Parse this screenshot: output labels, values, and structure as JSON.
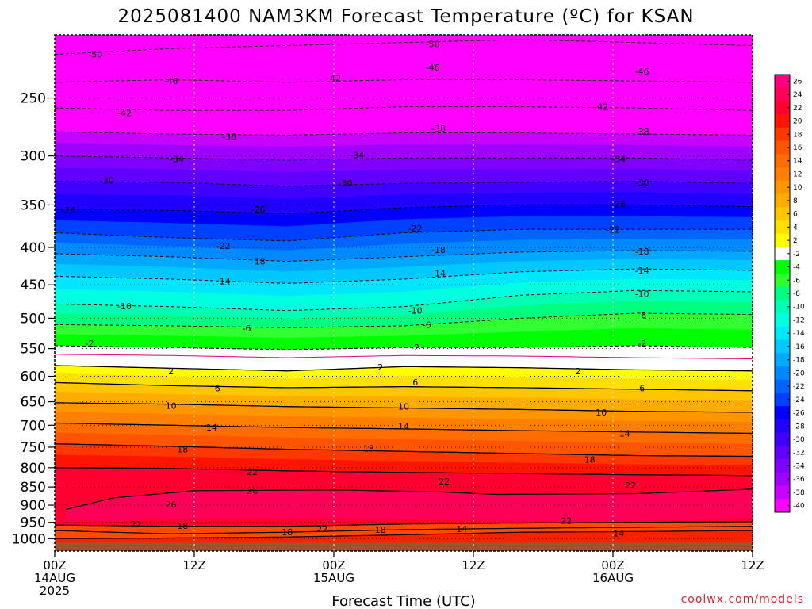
{
  "chart_data": {
    "type": "heatmap",
    "title": "2025081400 NAM3KM Forecast Temperature (ºC) for KSAN",
    "xlabel": "Forecast Time (UTC)",
    "ylabel": "",
    "y_scale": "log-pressure",
    "ylim": [
      1040,
      205
    ],
    "xlim_hours": [
      0,
      60
    ],
    "grid": true,
    "x_ticks": [
      {
        "hour": 0,
        "lines": [
          "00Z",
          "14AUG",
          "2025"
        ]
      },
      {
        "hour": 12,
        "lines": [
          "12Z"
        ]
      },
      {
        "hour": 24,
        "lines": [
          "00Z",
          "15AUG"
        ]
      },
      {
        "hour": 36,
        "lines": [
          "12Z"
        ]
      },
      {
        "hour": 48,
        "lines": [
          "00Z",
          "16AUG"
        ]
      },
      {
        "hour": 60,
        "lines": [
          "12Z"
        ]
      }
    ],
    "y_ticks": [
      250,
      300,
      350,
      400,
      450,
      500,
      550,
      600,
      650,
      700,
      750,
      800,
      850,
      900,
      950,
      1000
    ],
    "colorbar": {
      "placement": "right",
      "ticks": [
        26,
        24,
        22,
        20,
        18,
        16,
        14,
        12,
        10,
        8,
        6,
        4,
        2,
        -2,
        -4,
        -6,
        -8,
        -10,
        -12,
        -14,
        -16,
        -18,
        -20,
        -22,
        -24,
        -26,
        -28,
        -30,
        -32,
        -34,
        -36,
        -38,
        -40
      ],
      "colors": [
        "#ff0080",
        "#ff0058",
        "#ff0030",
        "#ff1400",
        "#ff3800",
        "#ff5400",
        "#ff6c00",
        "#ff8000",
        "#ff9600",
        "#ffac00",
        "#ffc600",
        "#ffe000",
        "#ffff00",
        "#ffffff",
        "#00ff00",
        "#30ff30",
        "#00ff80",
        "#00ffb4",
        "#00ffe0",
        "#00e6ff",
        "#00c8ff",
        "#00a8ff",
        "#0088ff",
        "#0064ff",
        "#0040ff",
        "#0000ff",
        "#2000ff",
        "#4000ff",
        "#6000ff",
        "#8000ff",
        "#a000ff",
        "#c800ff",
        "#ff00ff"
      ]
    },
    "series": [
      {
        "temp": 26,
        "x": [
          1,
          5,
          12,
          24,
          33,
          38,
          50,
          55,
          60
        ],
        "y": [
          912,
          880,
          860,
          858,
          863,
          870,
          868,
          862,
          856
        ]
      },
      {
        "temp": 22,
        "x": [
          0,
          10,
          20,
          30,
          40,
          50,
          60
        ],
        "y": [
          800,
          802,
          808,
          812,
          815,
          818,
          820
        ]
      },
      {
        "temp": 18,
        "x": [
          0,
          10,
          20,
          30,
          40,
          50,
          60
        ],
        "y": [
          742,
          748,
          755,
          760,
          765,
          770,
          772
        ]
      },
      {
        "temp": 14,
        "x": [
          0,
          10,
          20,
          30,
          40,
          50,
          60
        ],
        "y": [
          695,
          700,
          705,
          708,
          712,
          715,
          718
        ]
      },
      {
        "temp": 10,
        "x": [
          0,
          10,
          20,
          30,
          40,
          50,
          60
        ],
        "y": [
          652,
          655,
          660,
          663,
          666,
          670,
          672
        ]
      },
      {
        "temp": 6,
        "x": [
          0,
          10,
          20,
          30,
          40,
          50,
          60
        ],
        "y": [
          612,
          618,
          622,
          620,
          622,
          625,
          628
        ]
      },
      {
        "temp": 2,
        "x": [
          0,
          10,
          20,
          30,
          40,
          50,
          60
        ],
        "y": [
          580,
          585,
          590,
          582,
          584,
          588,
          590
        ]
      },
      {
        "temp": 0,
        "x": [
          0,
          10,
          20,
          30,
          40,
          50,
          60
        ],
        "y": [
          560,
          562,
          566,
          562,
          563,
          566,
          568
        ]
      },
      {
        "temp": -2,
        "x": [
          0,
          10,
          20,
          30,
          40,
          50,
          60
        ],
        "y": [
          545,
          548,
          552,
          548,
          548,
          545,
          548
        ]
      },
      {
        "temp": -6,
        "x": [
          0,
          10,
          20,
          30,
          40,
          50,
          60
        ],
        "y": [
          510,
          512,
          515,
          512,
          500,
          492,
          494
        ]
      },
      {
        "temp": -10,
        "x": [
          0,
          10,
          20,
          30,
          40,
          50,
          60
        ],
        "y": [
          478,
          482,
          488,
          482,
          465,
          458,
          460
        ]
      },
      {
        "temp": -14,
        "x": [
          0,
          10,
          20,
          30,
          40,
          50,
          60
        ],
        "y": [
          438,
          442,
          448,
          442,
          432,
          428,
          430
        ]
      },
      {
        "temp": -18,
        "x": [
          0,
          10,
          20,
          30,
          40,
          50,
          60
        ],
        "y": [
          408,
          412,
          418,
          412,
          406,
          404,
          405
        ]
      },
      {
        "temp": -22,
        "x": [
          0,
          10,
          20,
          30,
          40,
          50,
          60
        ],
        "y": [
          382,
          388,
          392,
          382,
          378,
          378,
          378
        ]
      },
      {
        "temp": -26,
        "x": [
          0,
          10,
          20,
          30,
          40,
          50,
          60
        ],
        "y": [
          355,
          356,
          360,
          353,
          350,
          350,
          352
        ]
      },
      {
        "temp": -30,
        "x": [
          0,
          10,
          20,
          30,
          40,
          50,
          60
        ],
        "y": [
          325,
          326,
          330,
          327,
          326,
          325,
          327
        ]
      },
      {
        "temp": -34,
        "x": [
          0,
          10,
          20,
          30,
          40,
          50,
          60
        ],
        "y": [
          300,
          302,
          304,
          302,
          302,
          302,
          304
        ]
      },
      {
        "temp": -38,
        "x": [
          0,
          10,
          20,
          30,
          40,
          50,
          60
        ],
        "y": [
          278,
          280,
          281,
          279,
          279,
          280,
          281
        ]
      },
      {
        "temp": -42,
        "x": [
          0,
          10,
          20,
          30,
          40,
          50,
          60
        ],
        "y": [
          258,
          260,
          260,
          257,
          257,
          258,
          260
        ]
      },
      {
        "temp": -46,
        "x": [
          0,
          10,
          20,
          30,
          40,
          50,
          60
        ],
        "y": [
          238,
          236,
          238,
          236,
          236,
          237,
          238
        ]
      },
      {
        "temp": -50,
        "x": [
          0,
          10,
          20,
          30,
          40,
          50,
          60
        ],
        "y": [
          218,
          214,
          212,
          210,
          208,
          210,
          212
        ]
      }
    ],
    "inversion_lines": [
      {
        "x": [
          0,
          10,
          20,
          30,
          40,
          50,
          60
        ],
        "y": [
          958,
          962,
          962,
          955,
          952,
          950,
          948
        ]
      },
      {
        "x": [
          0,
          10,
          20,
          30,
          40,
          50,
          60
        ],
        "y": [
          975,
          985,
          980,
          972,
          968,
          965,
          962
        ]
      },
      {
        "x": [
          0,
          10,
          20,
          30,
          40,
          50,
          60
        ],
        "y": [
          1000,
          998,
          995,
          988,
          980,
          978,
          975
        ]
      }
    ],
    "surface_pressure": 1013,
    "contour_labels": [
      {
        "text": "-50",
        "x": 3.5,
        "y": 218
      },
      {
        "text": "-50",
        "x": 32.5,
        "y": 211
      },
      {
        "text": "-46",
        "x": 10,
        "y": 237
      },
      {
        "text": "-46",
        "x": 32.5,
        "y": 227
      },
      {
        "text": "-46",
        "x": 50.5,
        "y": 230
      },
      {
        "text": "-42",
        "x": 6,
        "y": 262
      },
      {
        "text": "-42",
        "x": 24,
        "y": 235
      },
      {
        "text": "-42",
        "x": 47,
        "y": 257
      },
      {
        "text": "-38",
        "x": 15,
        "y": 282
      },
      {
        "text": "-38",
        "x": 33,
        "y": 275
      },
      {
        "text": "-38",
        "x": 50.5,
        "y": 278
      },
      {
        "text": "-34",
        "x": 10.5,
        "y": 303
      },
      {
        "text": "-34",
        "x": 26,
        "y": 299
      },
      {
        "text": "-34",
        "x": 48.5,
        "y": 303
      },
      {
        "text": "-30",
        "x": 4.5,
        "y": 324
      },
      {
        "text": "-30",
        "x": 25,
        "y": 327
      },
      {
        "text": "-30",
        "x": 50.5,
        "y": 326
      },
      {
        "text": "-26",
        "x": 1.2,
        "y": 356
      },
      {
        "text": "-26",
        "x": 17.5,
        "y": 355
      },
      {
        "text": "-26",
        "x": 48.5,
        "y": 349
      },
      {
        "text": "-22",
        "x": 14.5,
        "y": 398
      },
      {
        "text": "-22",
        "x": 31,
        "y": 377
      },
      {
        "text": "-22",
        "x": 48,
        "y": 378
      },
      {
        "text": "-18",
        "x": 17.5,
        "y": 418
      },
      {
        "text": "-18",
        "x": 33,
        "y": 403
      },
      {
        "text": "-18",
        "x": 50.5,
        "y": 405
      },
      {
        "text": "-14",
        "x": 14.5,
        "y": 445
      },
      {
        "text": "-14",
        "x": 33,
        "y": 434
      },
      {
        "text": "-14",
        "x": 50.5,
        "y": 430
      },
      {
        "text": "-10",
        "x": 6,
        "y": 481
      },
      {
        "text": "-10",
        "x": 31,
        "y": 488
      },
      {
        "text": "-10",
        "x": 50.5,
        "y": 463
      },
      {
        "text": "-6",
        "x": 16.5,
        "y": 516
      },
      {
        "text": "-6",
        "x": 32,
        "y": 510
      },
      {
        "text": "-6",
        "x": 50.5,
        "y": 495
      },
      {
        "text": "-2",
        "x": 3,
        "y": 541
      },
      {
        "text": "-2",
        "x": 31,
        "y": 548
      },
      {
        "text": "-2",
        "x": 50.5,
        "y": 541
      },
      {
        "text": "2",
        "x": 10,
        "y": 590
      },
      {
        "text": "2",
        "x": 28,
        "y": 583
      },
      {
        "text": "2",
        "x": 45,
        "y": 590
      },
      {
        "text": "6",
        "x": 14,
        "y": 623
      },
      {
        "text": "6",
        "x": 31,
        "y": 611
      },
      {
        "text": "6",
        "x": 50.5,
        "y": 623
      },
      {
        "text": "10",
        "x": 10,
        "y": 658
      },
      {
        "text": "10",
        "x": 30,
        "y": 660
      },
      {
        "text": "10",
        "x": 47,
        "y": 672
      },
      {
        "text": "14",
        "x": 13.5,
        "y": 705
      },
      {
        "text": "14",
        "x": 30,
        "y": 702
      },
      {
        "text": "14",
        "x": 49,
        "y": 718
      },
      {
        "text": "18",
        "x": 11,
        "y": 755
      },
      {
        "text": "18",
        "x": 27,
        "y": 753
      },
      {
        "text": "18",
        "x": 46,
        "y": 780
      },
      {
        "text": "22",
        "x": 17,
        "y": 810
      },
      {
        "text": "22",
        "x": 33.5,
        "y": 835
      },
      {
        "text": "22",
        "x": 49.5,
        "y": 845
      },
      {
        "text": "26",
        "x": 17,
        "y": 860
      },
      {
        "text": "26",
        "x": 10,
        "y": 898
      },
      {
        "text": "22",
        "x": 7,
        "y": 955
      },
      {
        "text": "18",
        "x": 11,
        "y": 960
      },
      {
        "text": "18",
        "x": 20,
        "y": 980
      },
      {
        "text": "22",
        "x": 23,
        "y": 970
      },
      {
        "text": "18",
        "x": 28,
        "y": 972
      },
      {
        "text": "14",
        "x": 35,
        "y": 970
      },
      {
        "text": "22",
        "x": 44,
        "y": 945
      },
      {
        "text": "14",
        "x": 48.5,
        "y": 983
      }
    ]
  },
  "credit": "coolwx.com/models"
}
